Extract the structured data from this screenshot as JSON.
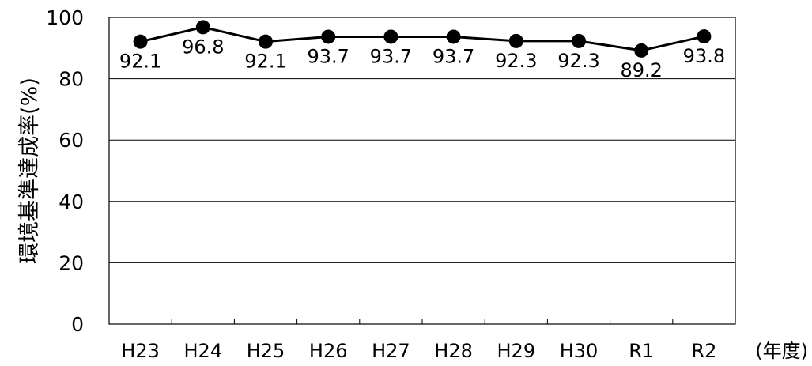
{
  "chart_data": {
    "type": "line",
    "title": "",
    "xlabel": "",
    "ylabel": "環境基準達成率(%)",
    "x_unit_label": "(年度)",
    "categories": [
      "H23",
      "H24",
      "H25",
      "H26",
      "H27",
      "H28",
      "H29",
      "H30",
      "R1",
      "R2"
    ],
    "series": [
      {
        "values": [
          92.1,
          96.8,
          92.1,
          93.7,
          93.7,
          93.7,
          92.3,
          92.3,
          89.2,
          93.8
        ],
        "value_labels": [
          "92.1",
          "96.8",
          "92.1",
          "93.7",
          "93.7",
          "93.7",
          "92.3",
          "92.3",
          "89.2",
          "93.8"
        ]
      }
    ],
    "ylim": [
      0,
      100
    ],
    "yticks": [
      0,
      20,
      40,
      60,
      80,
      100
    ],
    "ytick_labels": [
      "0",
      "20",
      "40",
      "60",
      "80",
      "100"
    ],
    "grid": true,
    "legend": "none",
    "colors": {
      "line": "#000000",
      "marker": "#000000",
      "grid": "#000000",
      "frame": "#000000",
      "text": "#000000",
      "background": "#ffffff"
    }
  }
}
